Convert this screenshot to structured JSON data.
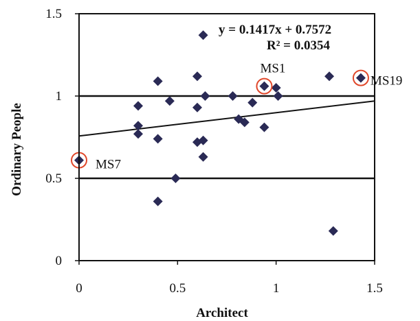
{
  "chart_data": {
    "type": "scatter",
    "xlabel": "Architect",
    "ylabel": "Ordinary People",
    "xlim": [
      0,
      1.5
    ],
    "ylim": [
      0,
      1.5
    ],
    "x_ticks": [
      "0",
      "0.5",
      "1",
      "1.5"
    ],
    "y_ticks": [
      "0",
      "0.5",
      "1",
      "1.5"
    ],
    "grid": false,
    "series": [
      {
        "points": [
          [
            0.0,
            0.61
          ],
          [
            0.3,
            0.94
          ],
          [
            0.3,
            0.82
          ],
          [
            0.3,
            0.77
          ],
          [
            0.4,
            1.09
          ],
          [
            0.4,
            0.74
          ],
          [
            0.4,
            0.36
          ],
          [
            0.46,
            0.97
          ],
          [
            0.49,
            0.5
          ],
          [
            0.6,
            1.12
          ],
          [
            0.6,
            0.93
          ],
          [
            0.6,
            0.72
          ],
          [
            0.63,
            1.37
          ],
          [
            0.63,
            0.73
          ],
          [
            0.63,
            0.63
          ],
          [
            0.64,
            1.0
          ],
          [
            0.78,
            1.0
          ],
          [
            0.81,
            0.86
          ],
          [
            0.84,
            0.84
          ],
          [
            0.88,
            0.96
          ],
          [
            0.94,
            1.06
          ],
          [
            0.94,
            0.81
          ],
          [
            1.0,
            1.05
          ],
          [
            1.01,
            1.0
          ],
          [
            1.27,
            1.12
          ],
          [
            1.29,
            0.18
          ],
          [
            1.43,
            1.11
          ]
        ],
        "color": "#2a2a55"
      }
    ],
    "trendline": {
      "slope": 0.1417,
      "intercept": 0.7572,
      "equation": "y = 0.1417x + 0.7572",
      "r2": "R² = 0.0354"
    },
    "reference_lines_y": [
      1.0,
      0.5
    ],
    "highlighted": [
      {
        "label": "MS7",
        "x": 0.0,
        "y": 0.61
      },
      {
        "label": "MS1",
        "x": 0.94,
        "y": 1.06
      },
      {
        "label": "MS19",
        "x": 1.43,
        "y": 1.11
      }
    ],
    "highlight_color": "#e0472a"
  }
}
